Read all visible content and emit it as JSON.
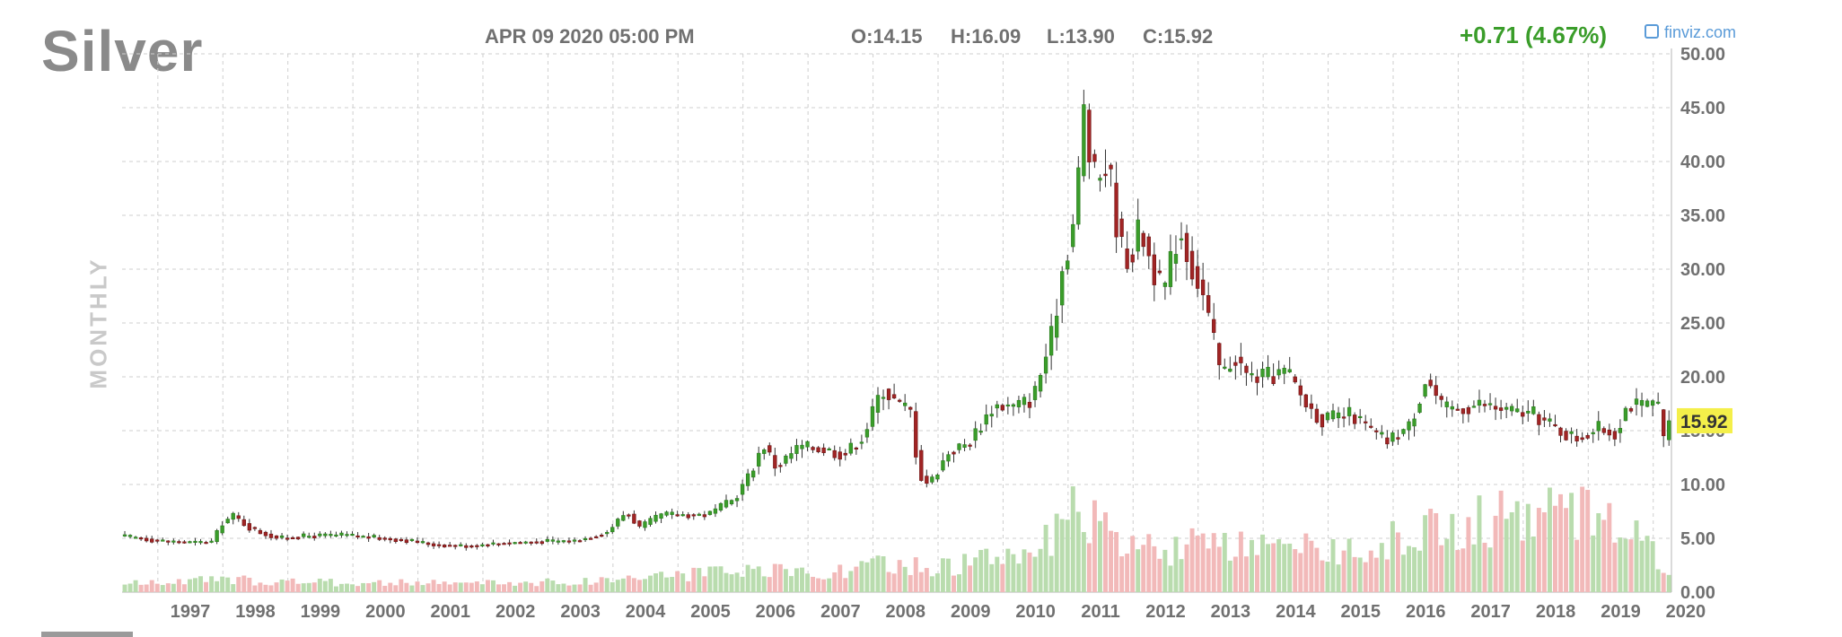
{
  "header": {
    "ticker": "Silver",
    "datetime": "APR 09 2020 05:00 PM",
    "open": "O:14.15",
    "high": "H:16.09",
    "low": "L:13.90",
    "close": "C:15.92",
    "change": "+0.71 (4.67%)",
    "brand": "finviz.com",
    "period_label": "MONTHLY"
  },
  "colors": {
    "up": "#3a9d2a",
    "down": "#a12424",
    "volume_up": "#b9dcae",
    "volume_down": "#f2b9b9",
    "grid": "#cfcfcf",
    "price_tag": "#f4ef4a",
    "brand": "#5a9bd8"
  },
  "chart_data": {
    "type": "candlestick",
    "period": "monthly",
    "x_labels": [
      "1997",
      "1998",
      "1999",
      "2000",
      "2001",
      "2002",
      "2003",
      "2004",
      "2005",
      "2006",
      "2007",
      "2008",
      "2009",
      "2010",
      "2011",
      "2012",
      "2013",
      "2014",
      "2015",
      "2016",
      "2017",
      "2018",
      "2019",
      "2020"
    ],
    "y_ticks": [
      "50.00",
      "45.00",
      "40.00",
      "35.00",
      "30.00",
      "25.00",
      "20.00",
      "15.00",
      "10.00",
      "5.00",
      "0.00"
    ],
    "ylim": [
      0,
      50
    ],
    "last_price": "15.92",
    "grid": true,
    "start": 1996.45,
    "end": 2020.28,
    "price_path": [
      [
        1996.45,
        5.2
      ],
      [
        1996.8,
        5.0
      ],
      [
        1997.0,
        4.8
      ],
      [
        1997.6,
        4.6
      ],
      [
        1997.9,
        4.7
      ],
      [
        1998.0,
        6.3
      ],
      [
        1998.2,
        7.1
      ],
      [
        1998.5,
        5.8
      ],
      [
        1998.7,
        5.4
      ],
      [
        1998.9,
        5.0
      ],
      [
        1999.3,
        5.2
      ],
      [
        1999.9,
        5.3
      ],
      [
        2000.3,
        5.1
      ],
      [
        2000.9,
        4.8
      ],
      [
        2001.3,
        4.4
      ],
      [
        2001.8,
        4.3
      ],
      [
        2002.4,
        4.6
      ],
      [
        2002.9,
        4.7
      ],
      [
        2003.5,
        4.8
      ],
      [
        2003.95,
        5.6
      ],
      [
        2004.25,
        7.5
      ],
      [
        2004.45,
        6.0
      ],
      [
        2004.8,
        7.2
      ],
      [
        2005.5,
        7.2
      ],
      [
        2005.9,
        8.6
      ],
      [
        2006.15,
        11.0
      ],
      [
        2006.35,
        13.8
      ],
      [
        2006.55,
        11.6
      ],
      [
        2006.9,
        13.5
      ],
      [
        2007.2,
        13.4
      ],
      [
        2007.6,
        12.8
      ],
      [
        2007.9,
        14.6
      ],
      [
        2008.18,
        19.0
      ],
      [
        2008.5,
        17.0
      ],
      [
        2008.6,
        17.5
      ],
      [
        2008.75,
        11.0
      ],
      [
        2008.9,
        10.0
      ],
      [
        2009.2,
        13.0
      ],
      [
        2009.5,
        13.8
      ],
      [
        2009.9,
        17.4
      ],
      [
        2010.2,
        17.2
      ],
      [
        2010.5,
        18.0
      ],
      [
        2010.8,
        24.0
      ],
      [
        2010.95,
        30.0
      ],
      [
        2011.15,
        35.0
      ],
      [
        2011.3,
        46.0
      ],
      [
        2011.4,
        38.0
      ],
      [
        2011.5,
        38.5
      ],
      [
        2011.65,
        40.0
      ],
      [
        2011.85,
        32.0
      ],
      [
        2012.0,
        31.0
      ],
      [
        2012.15,
        34.0
      ],
      [
        2012.3,
        31.0
      ],
      [
        2012.5,
        27.5
      ],
      [
        2012.75,
        34.0
      ],
      [
        2012.9,
        31.0
      ],
      [
        2013.1,
        28.0
      ],
      [
        2013.25,
        24.0
      ],
      [
        2013.4,
        20.0
      ],
      [
        2013.6,
        22.0
      ],
      [
        2013.8,
        20.0
      ],
      [
        2014.1,
        20.0
      ],
      [
        2014.4,
        20.5
      ],
      [
        2014.7,
        17.5
      ],
      [
        2014.95,
        16.0
      ],
      [
        2015.4,
        16.5
      ],
      [
        2015.7,
        15.0
      ],
      [
        2015.95,
        14.0
      ],
      [
        2016.3,
        15.5
      ],
      [
        2016.55,
        20.0
      ],
      [
        2016.8,
        17.0
      ],
      [
        2017.0,
        17.0
      ],
      [
        2017.4,
        17.5
      ],
      [
        2017.8,
        16.8
      ],
      [
        2018.2,
        16.5
      ],
      [
        2018.6,
        15.0
      ],
      [
        2018.85,
        14.3
      ],
      [
        2019.2,
        15.2
      ],
      [
        2019.45,
        14.8
      ],
      [
        2019.65,
        17.5
      ],
      [
        2019.9,
        17.2
      ],
      [
        2020.1,
        17.8
      ],
      [
        2020.17,
        14.2
      ],
      [
        2020.22,
        14.15
      ],
      [
        2020.28,
        15.92
      ]
    ],
    "volume_path": [
      [
        1996.45,
        0.8
      ],
      [
        1998.0,
        1.2
      ],
      [
        2000.0,
        0.9
      ],
      [
        2002.0,
        0.9
      ],
      [
        2003.5,
        1.0
      ],
      [
        2004.5,
        1.6
      ],
      [
        2005.5,
        1.8
      ],
      [
        2006.5,
        2.0
      ],
      [
        2007.5,
        2.0
      ],
      [
        2008.0,
        2.6
      ],
      [
        2009.0,
        2.4
      ],
      [
        2010.0,
        3.5
      ],
      [
        2010.8,
        5.3
      ],
      [
        2011.2,
        8.2
      ],
      [
        2011.5,
        6.0
      ],
      [
        2012.0,
        4.2
      ],
      [
        2013.0,
        4.5
      ],
      [
        2014.0,
        4.0
      ],
      [
        2015.0,
        4.2
      ],
      [
        2016.0,
        5.0
      ],
      [
        2016.6,
        6.2
      ],
      [
        2017.5,
        7.0
      ],
      [
        2018.5,
        7.8
      ],
      [
        2019.5,
        8.0
      ],
      [
        2020.28,
        1.6
      ]
    ]
  }
}
